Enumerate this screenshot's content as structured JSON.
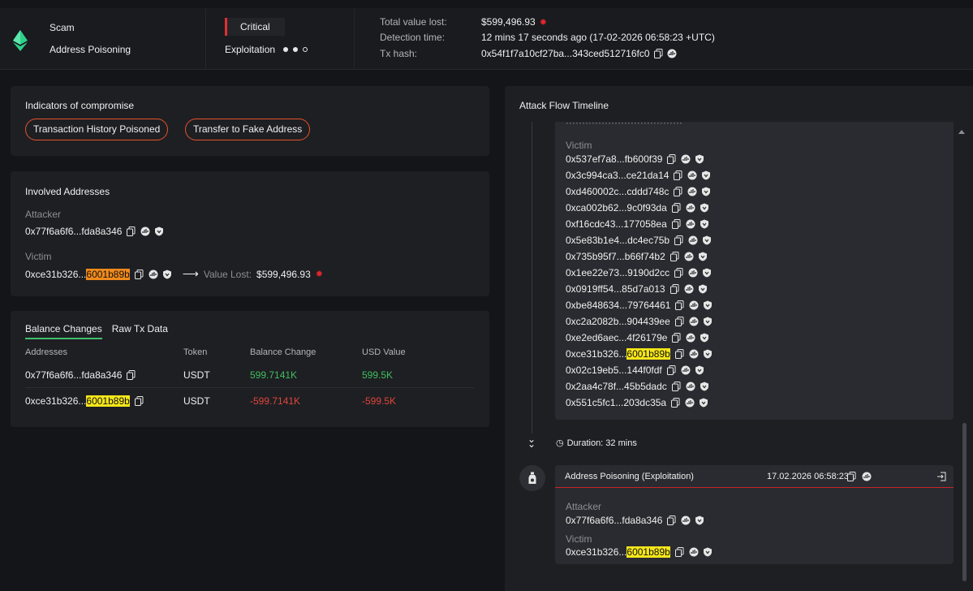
{
  "header": {
    "type": "Scam",
    "subtype": "Address Poisoning",
    "severity": "Critical",
    "phase": "Exploitation",
    "total_value_lost_label": "Total value lost:",
    "total_value_lost": "$599,496.93",
    "detection_time_label": "Detection time:",
    "detection_time": "12 mins 17 seconds ago (17-02-2026 06:58:23 +UTC)",
    "tx_hash_label": "Tx hash:",
    "tx_hash": "0x54f1f7a10cf27ba...343ced512716fc0"
  },
  "indicators": {
    "title": "Indicators of compromise",
    "items": [
      "Transaction History Poisoned",
      "Transfer to Fake Address"
    ]
  },
  "involved": {
    "title": "Involved Addresses",
    "attacker_label": "Attacker",
    "attacker": "0x77f6a6f6...fda8a346",
    "victim_label": "Victim",
    "victim_prefix": "0xce31b326...",
    "victim_suffix": "6001b89b",
    "value_lost_label": "Value Lost:",
    "value_lost": "$599,496.93"
  },
  "balance": {
    "tabs": [
      "Balance Changes",
      "Raw Tx Data"
    ],
    "columns": [
      "Addresses",
      "Token",
      "Balance Change",
      "USD Value"
    ],
    "rows": [
      {
        "addr": "0x77f6a6f6...fda8a346",
        "token": "USDT",
        "change": "599.7141K",
        "usd": "599.5K"
      },
      {
        "addr_prefix": "0xce31b326...",
        "addr_suffix": "6001b89b",
        "token": "USDT",
        "change": "-599.7141K",
        "usd": "-599.5K"
      }
    ]
  },
  "timeline": {
    "title": "Attack Flow Timeline",
    "victim_label": "Victim",
    "victims": [
      "0x537ef7a8...fb600f39",
      "0x3c994ca3...ce21da14",
      "0xd460002c...cddd748c",
      "0xca002b62...9c0f93da",
      "0xf16cdc43...177058ea",
      "0x5e83b1e4...dc4ec75b",
      "0x735b95f7...b66f74b2",
      "0x1ee22e73...9190d2cc",
      "0x0919ff54...85d7a013",
      "0xbe848634...79764461",
      "0xc2a2082b...904439ee",
      "0xe2ed6aec...4f26179e"
    ],
    "victim_hl_prefix": "0xce31b326...",
    "victim_hl_suffix": "6001b89b",
    "victims_after": [
      "0x02c19eb5...144f0fdf",
      "0x2aa4c78f...45b5dadc",
      "0x551c5fc1...203dc35a"
    ],
    "duration": "Duration: 32 mins",
    "event": {
      "title": "Address Poisoning (Exploitation)",
      "time": "17.02.2026 06:58:23",
      "attacker_label": "Attacker",
      "attacker": "0x77f6a6f6...fda8a346",
      "victim_label": "Victim",
      "victim_prefix": "0xce31b326...",
      "victim_suffix": "6001b89b"
    }
  }
}
